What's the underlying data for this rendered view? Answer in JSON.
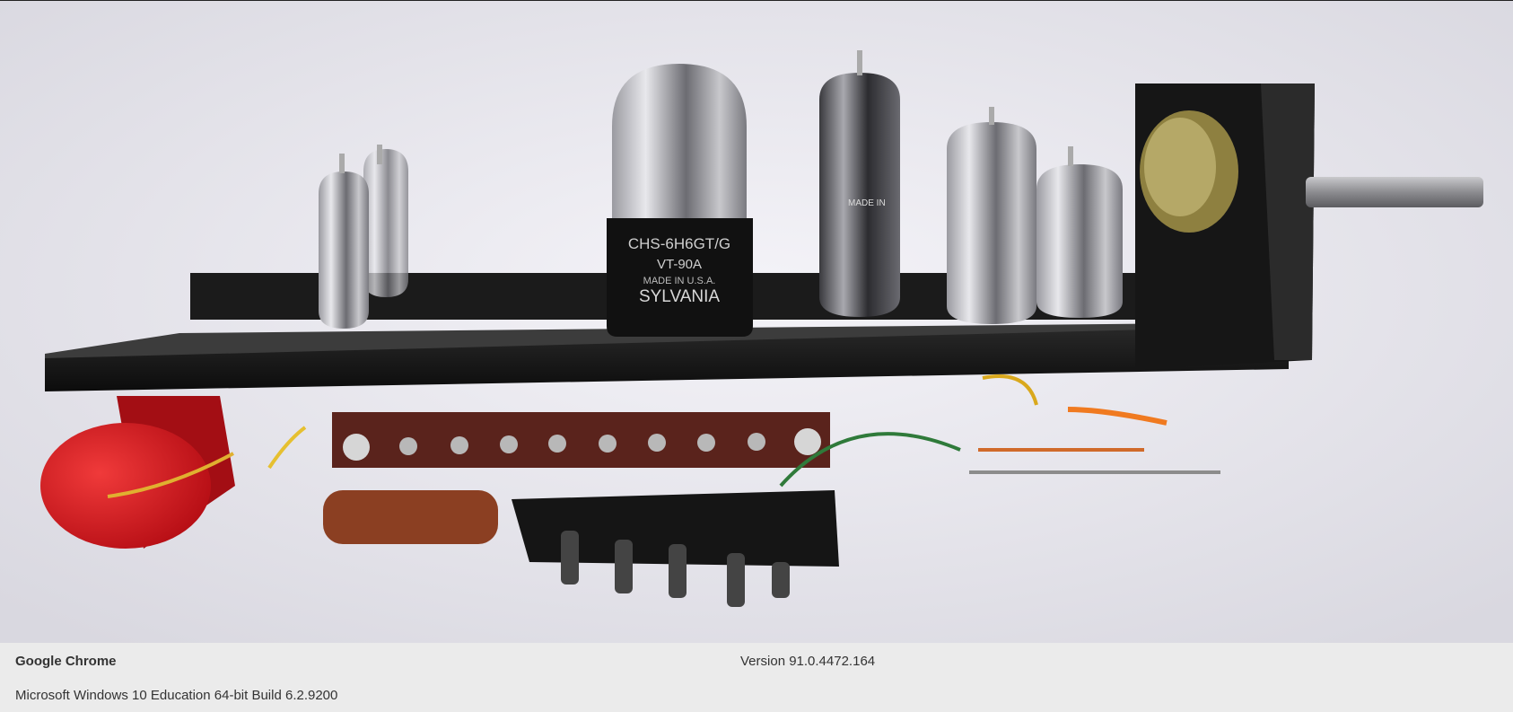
{
  "wallpaper": {
    "subject": "vacuum-tube-chassis",
    "tube_print": {
      "line1": "CHS-6H6GT/G",
      "line2": "VT-90A",
      "line3": "MADE IN U.S.A.",
      "line4": "SYLVANIA"
    },
    "small_print": "MADE IN"
  },
  "info": {
    "app_name": "Google Chrome",
    "version": "Version 91.0.4472.164",
    "os": "Microsoft Windows 10 Education 64-bit Build 6.2.9200"
  },
  "colors": {
    "background": "#ebebeb",
    "capacitor": "#d8141c",
    "chassis": "#151515"
  }
}
